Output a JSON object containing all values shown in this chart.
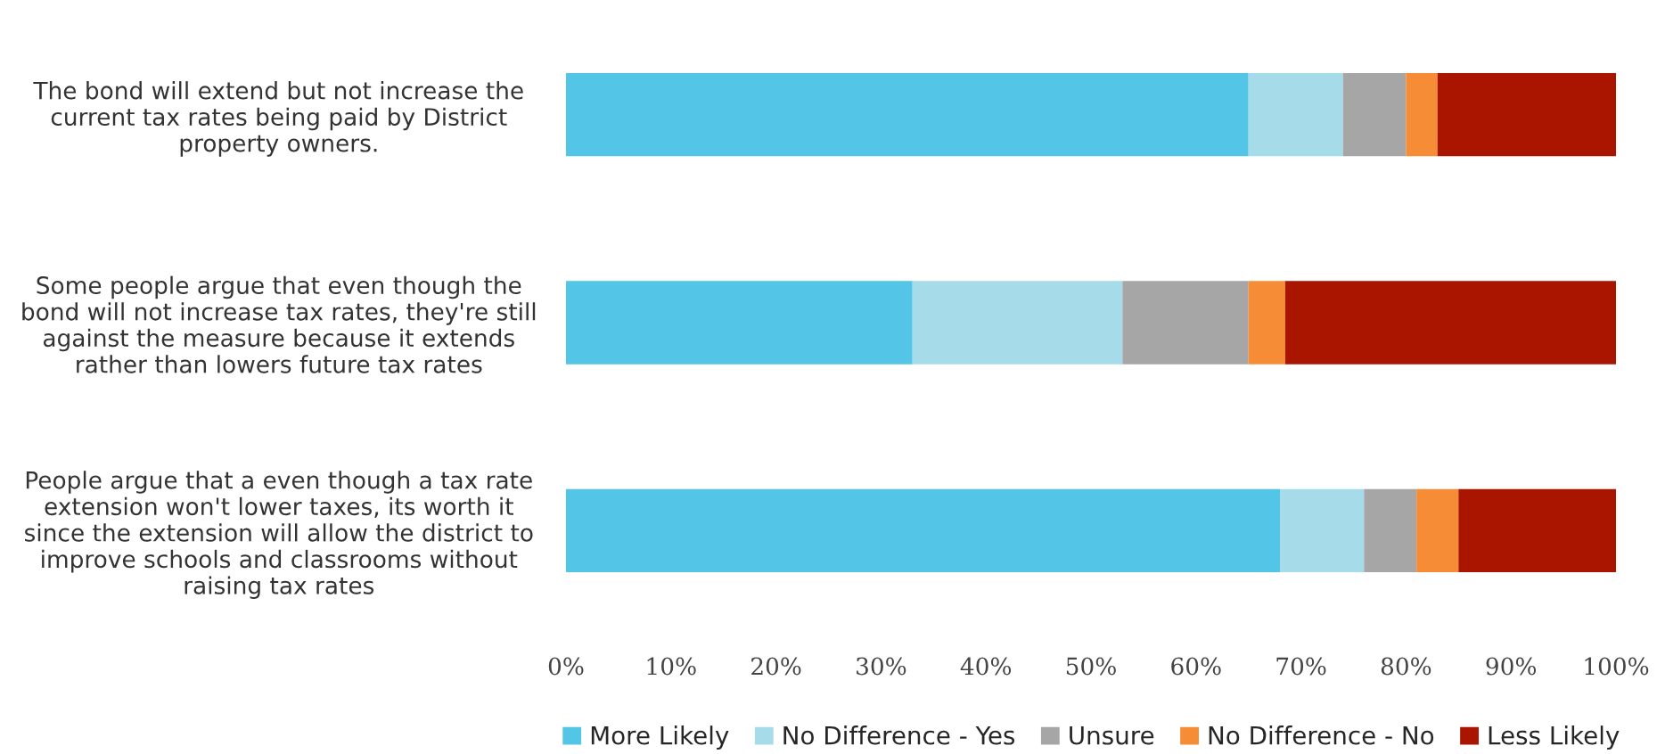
{
  "chart_data": {
    "type": "bar",
    "orientation": "horizontal",
    "stacked": true,
    "categories": [
      "The bond will extend but not increase the\ncurrent tax rates being paid by District\nproperty owners.",
      "Some people argue that even though the\nbond will not increase tax rates, they're still\nagainst the measure because it extends\nrather than lowers future tax rates",
      "People argue that a even though a tax rate\nextension won't lower taxes, its worth it\nsince the extension will allow the district to\nimprove schools and classrooms without\nraising tax rates"
    ],
    "series": [
      {
        "name": "More Likely",
        "color": "#53c5e6",
        "values": [
          65,
          33,
          68
        ]
      },
      {
        "name": "No Difference - Yes",
        "color": "#a6dbe9",
        "values": [
          9,
          20,
          8
        ]
      },
      {
        "name": "Unsure",
        "color": "#a6a6a6",
        "values": [
          6,
          12,
          5
        ]
      },
      {
        "name": "No Difference - No",
        "color": "#f68c36",
        "values": [
          3,
          3.5,
          4
        ]
      },
      {
        "name": "Less Likely",
        "color": "#aa1500",
        "values": [
          17,
          31.5,
          15
        ]
      }
    ],
    "xlim": [
      0,
      100
    ],
    "xticks": [
      {
        "value": 0,
        "label": "0%"
      },
      {
        "value": 10,
        "label": "10%"
      },
      {
        "value": 20,
        "label": "20%"
      },
      {
        "value": 30,
        "label": "30%"
      },
      {
        "value": 40,
        "label": "40%"
      },
      {
        "value": 50,
        "label": "50%"
      },
      {
        "value": 60,
        "label": "60%"
      },
      {
        "value": 70,
        "label": "70%"
      },
      {
        "value": 80,
        "label": "80%"
      },
      {
        "value": 90,
        "label": "90%"
      },
      {
        "value": 100,
        "label": "100%"
      }
    ],
    "legend": "bottom",
    "grid": false
  }
}
